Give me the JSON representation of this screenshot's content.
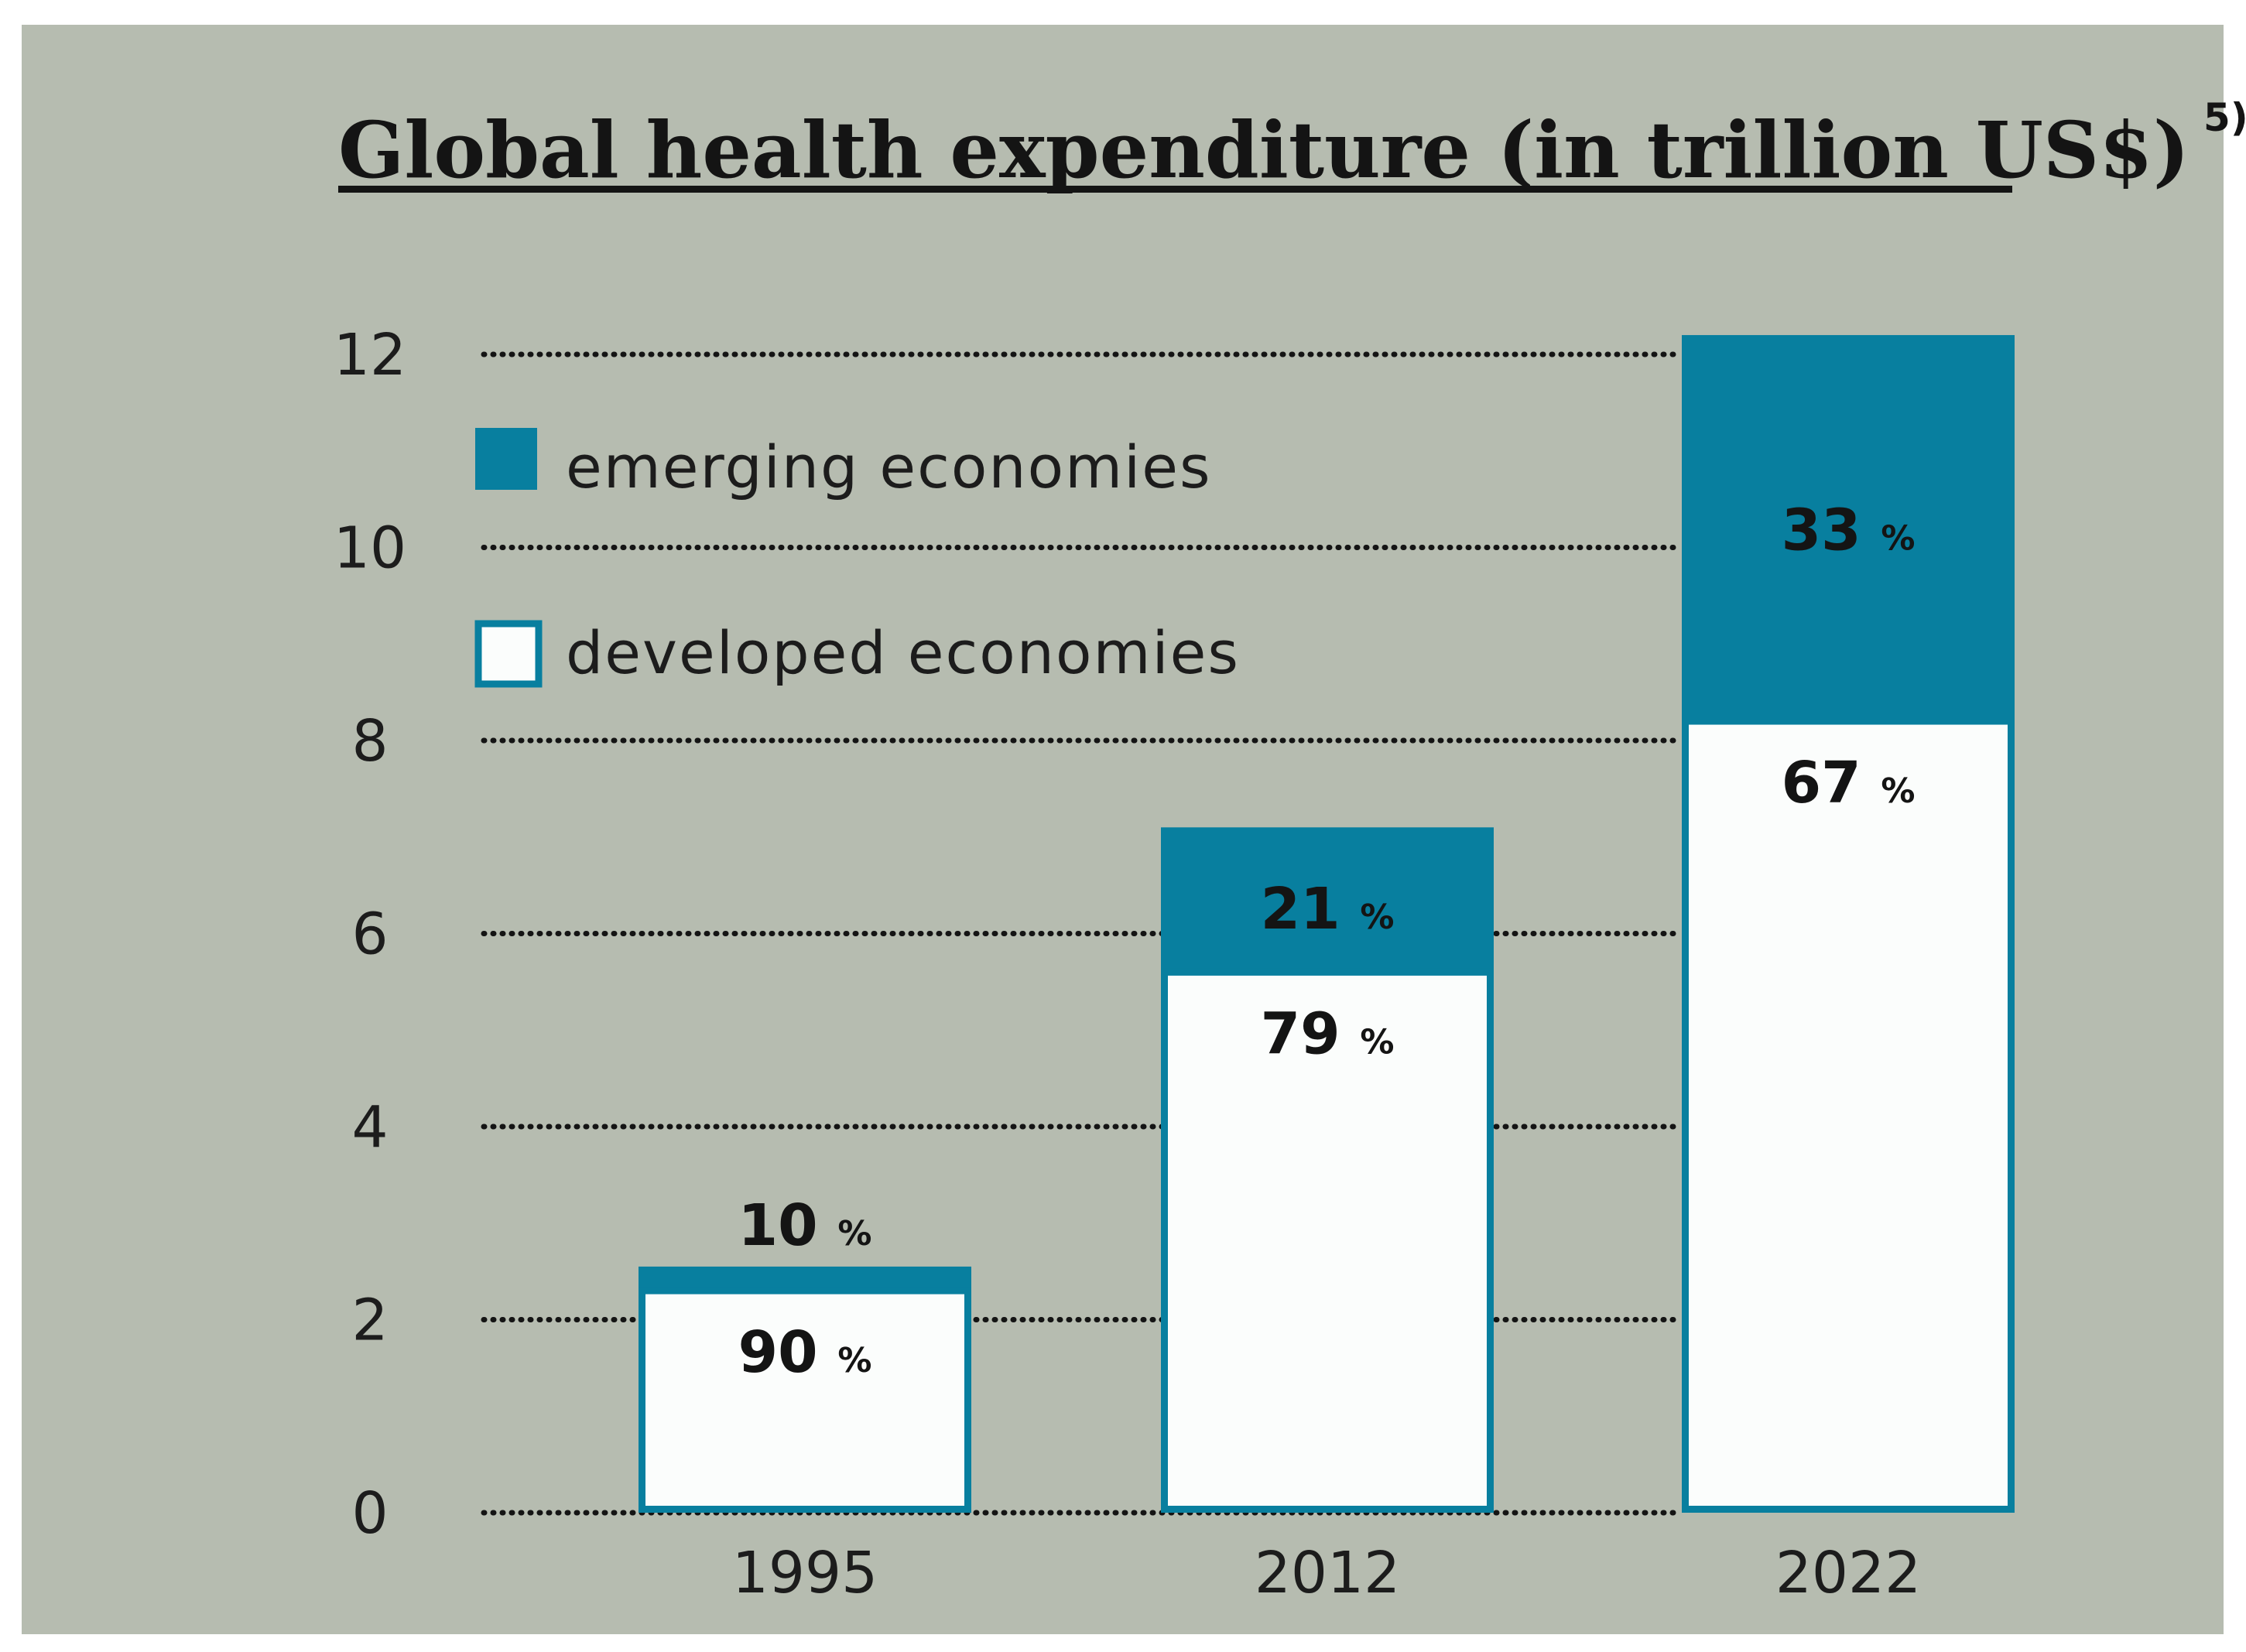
{
  "chart_data": {
    "type": "bar",
    "stacked": true,
    "title": "Global health expenditure (in trillion US$)",
    "title_footnote": "5)",
    "xlabel": "",
    "ylabel": "",
    "ylim": [
      0,
      12
    ],
    "yticks": [
      0,
      2,
      4,
      6,
      8,
      10,
      12
    ],
    "grid": "dotted horizontal",
    "legend_position": "top-left",
    "categories": [
      "1995",
      "2012",
      "2022"
    ],
    "totals": [
      2.55,
      7.1,
      12.2
    ],
    "series": [
      {
        "name": "developed economies",
        "color": "#fbfdfc",
        "values": [
          2.3,
          5.6,
          8.2
        ],
        "percent_labels": [
          "90",
          "79",
          "67"
        ]
      },
      {
        "name": "emerging economies",
        "color": "#087f9f",
        "values": [
          0.25,
          1.5,
          4.0
        ],
        "percent_labels": [
          "10",
          "21",
          "33"
        ]
      }
    ],
    "percent_sign": "%"
  }
}
